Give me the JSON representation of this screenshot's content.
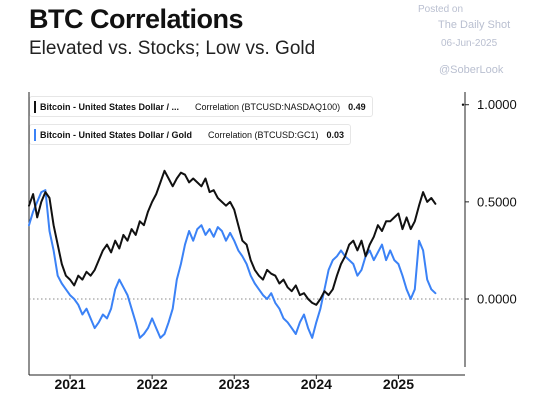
{
  "header": {
    "title": "BTC Correlations",
    "subtitle": "Elevated vs. Stocks; Low vs. Gold",
    "posted_on": "Posted on",
    "source": "The Daily Shot",
    "date": "06-Jun-2025",
    "handle": "@SoberLook"
  },
  "legend": [
    {
      "name": "Bitcoin - United States Dollar / ...",
      "label": "Correlation (BTCUSD:NASDAQ100)",
      "value": "0.49",
      "color": "#111111"
    },
    {
      "name": "Bitcoin - United States Dollar / Gold",
      "label": "Correlation (BTCUSD:GC1)",
      "value": "0.03",
      "color": "#3b82f6"
    }
  ],
  "chart_data": {
    "type": "line",
    "title": "BTC Correlations",
    "subtitle": "Elevated vs. Stocks; Low vs. Gold",
    "x_ticks": [
      2021,
      2022,
      2023,
      2024,
      2025
    ],
    "y_ticks": [
      "1.0000",
      "0.5000",
      "0.0000"
    ],
    "xlim": [
      2020.5,
      2025.75
    ],
    "ylim": [
      -0.35,
      1.05
    ],
    "reference_line": 0,
    "series": [
      {
        "name": "Bitcoin - United States Dollar / ...",
        "color": "#111111",
        "x": [
          2020.5,
          2020.55,
          2020.6,
          2020.65,
          2020.7,
          2020.75,
          2020.8,
          2020.85,
          2020.9,
          2020.95,
          2021.0,
          2021.05,
          2021.1,
          2021.15,
          2021.2,
          2021.25,
          2021.3,
          2021.35,
          2021.4,
          2021.45,
          2021.5,
          2021.55,
          2021.6,
          2021.65,
          2021.7,
          2021.75,
          2021.8,
          2021.85,
          2021.9,
          2021.95,
          2022.0,
          2022.05,
          2022.1,
          2022.15,
          2022.2,
          2022.25,
          2022.3,
          2022.35,
          2022.4,
          2022.45,
          2022.5,
          2022.55,
          2022.6,
          2022.65,
          2022.7,
          2022.75,
          2022.8,
          2022.85,
          2022.9,
          2022.95,
          2023.0,
          2023.05,
          2023.1,
          2023.15,
          2023.2,
          2023.25,
          2023.3,
          2023.35,
          2023.4,
          2023.45,
          2023.5,
          2023.55,
          2023.6,
          2023.65,
          2023.7,
          2023.75,
          2023.8,
          2023.85,
          2023.9,
          2023.95,
          2024.0,
          2024.05,
          2024.1,
          2024.15,
          2024.2,
          2024.25,
          2024.3,
          2024.35,
          2024.4,
          2024.45,
          2024.5,
          2024.55,
          2024.6,
          2024.65,
          2024.7,
          2024.75,
          2024.8,
          2024.85,
          2024.9,
          2024.95,
          2025.0,
          2025.05,
          2025.1,
          2025.15,
          2025.2,
          2025.25,
          2025.3,
          2025.35,
          2025.4,
          2025.45
        ],
        "values": [
          0.48,
          0.54,
          0.42,
          0.5,
          0.55,
          0.52,
          0.38,
          0.28,
          0.18,
          0.12,
          0.1,
          0.07,
          0.12,
          0.1,
          0.14,
          0.12,
          0.15,
          0.2,
          0.25,
          0.28,
          0.24,
          0.3,
          0.26,
          0.33,
          0.3,
          0.36,
          0.33,
          0.4,
          0.38,
          0.45,
          0.5,
          0.54,
          0.6,
          0.66,
          0.62,
          0.58,
          0.62,
          0.65,
          0.64,
          0.6,
          0.62,
          0.6,
          0.58,
          0.62,
          0.55,
          0.56,
          0.52,
          0.5,
          0.48,
          0.5,
          0.46,
          0.38,
          0.3,
          0.28,
          0.2,
          0.15,
          0.12,
          0.1,
          0.15,
          0.13,
          0.12,
          0.08,
          0.1,
          0.06,
          0.04,
          0.07,
          0.02,
          0.03,
          0.0,
          -0.02,
          -0.03,
          0.0,
          0.04,
          0.02,
          0.05,
          0.12,
          0.18,
          0.22,
          0.28,
          0.3,
          0.25,
          0.3,
          0.22,
          0.28,
          0.32,
          0.38,
          0.35,
          0.4,
          0.4,
          0.42,
          0.44,
          0.36,
          0.42,
          0.36,
          0.4,
          0.48,
          0.55,
          0.5,
          0.52,
          0.49
        ]
      },
      {
        "name": "Bitcoin - United States Dollar / Gold",
        "color": "#3b82f6",
        "x": [
          2020.5,
          2020.55,
          2020.6,
          2020.65,
          2020.7,
          2020.75,
          2020.8,
          2020.85,
          2020.9,
          2020.95,
          2021.0,
          2021.05,
          2021.1,
          2021.15,
          2021.2,
          2021.25,
          2021.3,
          2021.35,
          2021.4,
          2021.45,
          2021.5,
          2021.55,
          2021.6,
          2021.65,
          2021.7,
          2021.75,
          2021.8,
          2021.85,
          2021.9,
          2021.95,
          2022.0,
          2022.05,
          2022.1,
          2022.15,
          2022.2,
          2022.25,
          2022.3,
          2022.35,
          2022.4,
          2022.45,
          2022.5,
          2022.55,
          2022.6,
          2022.65,
          2022.7,
          2022.75,
          2022.8,
          2022.85,
          2022.9,
          2022.95,
          2023.0,
          2023.05,
          2023.1,
          2023.15,
          2023.2,
          2023.25,
          2023.3,
          2023.35,
          2023.4,
          2023.45,
          2023.5,
          2023.55,
          2023.6,
          2023.65,
          2023.7,
          2023.75,
          2023.8,
          2023.85,
          2023.9,
          2023.95,
          2024.0,
          2024.05,
          2024.1,
          2024.15,
          2024.2,
          2024.25,
          2024.3,
          2024.35,
          2024.4,
          2024.45,
          2024.5,
          2024.55,
          2024.6,
          2024.65,
          2024.7,
          2024.75,
          2024.8,
          2024.85,
          2024.9,
          2024.95,
          2025.0,
          2025.05,
          2025.1,
          2025.15,
          2025.2,
          2025.25,
          2025.3,
          2025.35,
          2025.4,
          2025.45
        ],
        "values": [
          0.38,
          0.45,
          0.5,
          0.55,
          0.56,
          0.35,
          0.25,
          0.12,
          0.08,
          0.05,
          0.02,
          0.0,
          -0.03,
          -0.08,
          -0.05,
          -0.1,
          -0.15,
          -0.12,
          -0.08,
          -0.1,
          -0.05,
          0.05,
          0.1,
          0.06,
          0.02,
          -0.05,
          -0.12,
          -0.2,
          -0.18,
          -0.15,
          -0.1,
          -0.15,
          -0.2,
          -0.18,
          -0.12,
          -0.05,
          0.1,
          0.18,
          0.28,
          0.35,
          0.3,
          0.36,
          0.38,
          0.33,
          0.36,
          0.32,
          0.37,
          0.35,
          0.3,
          0.34,
          0.3,
          0.25,
          0.22,
          0.18,
          0.12,
          0.08,
          0.05,
          0.02,
          0.0,
          0.03,
          -0.02,
          -0.05,
          -0.1,
          -0.12,
          -0.15,
          -0.18,
          -0.12,
          -0.08,
          -0.15,
          -0.2,
          -0.12,
          -0.05,
          0.05,
          0.15,
          0.2,
          0.22,
          0.25,
          0.22,
          0.2,
          0.18,
          0.12,
          0.15,
          0.22,
          0.25,
          0.2,
          0.24,
          0.28,
          0.2,
          0.25,
          0.2,
          0.18,
          0.12,
          0.05,
          0.0,
          0.05,
          0.3,
          0.25,
          0.1,
          0.05,
          0.03
        ]
      }
    ]
  }
}
